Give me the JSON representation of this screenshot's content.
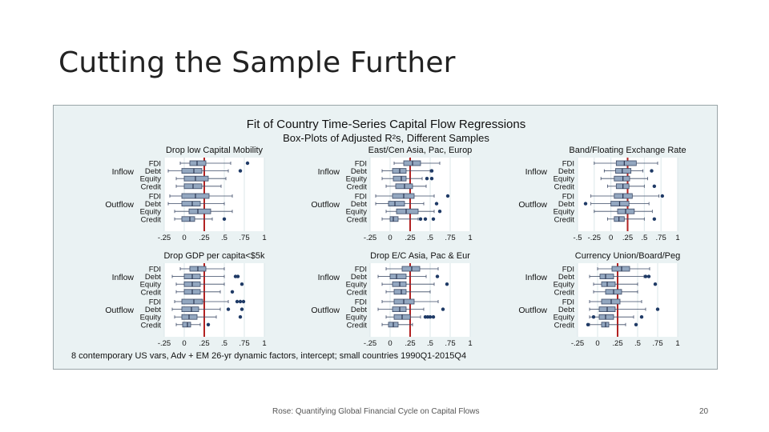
{
  "slide": {
    "title": "Cutting the Sample Further",
    "footer": "Rose: Quantifying Global Financial Cycle on Capital Flows",
    "page_number": "20"
  },
  "colors": {
    "panel_bg": "#eaf2f3",
    "plot_bg": "#ffffff",
    "box_fill": "#93a7c0",
    "box_stroke": "#3c4a66",
    "median": "#2a3550",
    "outlier": "#1f3a66",
    "ref_line": "#b22222",
    "grid": "#dbe7ea"
  },
  "chart_data": {
    "type": "boxplot",
    "title": "Fit of Country Time-Series Capital Flow Regressions",
    "subtitle": "Box-Plots of Adjusted R²s, Different Samples",
    "note": "8 contemporary US vars, Adv + EM 26-yr dynamic factors, intercept; small countries 1990Q1-2015Q4",
    "reference_line": 0.25,
    "groups": [
      "Inflow",
      "Outflow"
    ],
    "categories": [
      "FDI",
      "Debt",
      "Equity",
      "Credit"
    ],
    "panels": [
      {
        "title": "Drop low Capital Mobility",
        "xlim": [
          -0.25,
          1
        ],
        "tick_labels": [
          "-.25",
          "0",
          ".25",
          ".5",
          ".75",
          "1"
        ],
        "tick_values": [
          -0.25,
          0,
          0.25,
          0.5,
          0.75,
          1
        ],
        "series": [
          {
            "group": "Inflow",
            "name": "FDI",
            "whisker_low": -0.05,
            "q1": 0.07,
            "median": 0.16,
            "q3": 0.27,
            "whisker_high": 0.58,
            "outliers": [
              0.79
            ]
          },
          {
            "group": "Inflow",
            "name": "Debt",
            "whisker_low": -0.2,
            "q1": -0.03,
            "median": 0.12,
            "q3": 0.22,
            "whisker_high": 0.55,
            "outliers": [
              0.7
            ]
          },
          {
            "group": "Inflow",
            "name": "Equity",
            "whisker_low": -0.1,
            "q1": 0.0,
            "median": 0.14,
            "q3": 0.3,
            "whisker_high": 0.52,
            "outliers": []
          },
          {
            "group": "Inflow",
            "name": "Credit",
            "whisker_low": -0.1,
            "q1": 0.0,
            "median": 0.11,
            "q3": 0.22,
            "whisker_high": 0.46,
            "outliers": []
          },
          {
            "group": "Outflow",
            "name": "FDI",
            "whisker_low": -0.18,
            "q1": -0.03,
            "median": 0.14,
            "q3": 0.31,
            "whisker_high": 0.6,
            "outliers": []
          },
          {
            "group": "Outflow",
            "name": "Debt",
            "whisker_low": -0.2,
            "q1": -0.03,
            "median": 0.1,
            "q3": 0.2,
            "whisker_high": 0.5,
            "outliers": []
          },
          {
            "group": "Outflow",
            "name": "Equity",
            "whisker_low": -0.12,
            "q1": 0.06,
            "median": 0.17,
            "q3": 0.33,
            "whisker_high": 0.6,
            "outliers": []
          },
          {
            "group": "Outflow",
            "name": "Credit",
            "whisker_low": -0.12,
            "q1": -0.03,
            "median": 0.07,
            "q3": 0.13,
            "whisker_high": 0.35,
            "outliers": [
              0.5
            ]
          }
        ]
      },
      {
        "title": "East/Cen Asia, Pac, Europ",
        "xlim": [
          -0.25,
          1
        ],
        "tick_labels": [
          "-.25",
          "0",
          ".25",
          ".5",
          ".75",
          "1"
        ],
        "tick_values": [
          -0.25,
          0,
          0.25,
          0.5,
          0.75,
          1
        ],
        "series": [
          {
            "group": "Inflow",
            "name": "FDI",
            "whisker_low": 0.05,
            "q1": 0.17,
            "median": 0.28,
            "q3": 0.38,
            "whisker_high": 0.62,
            "outliers": []
          },
          {
            "group": "Inflow",
            "name": "Debt",
            "whisker_low": -0.1,
            "q1": 0.03,
            "median": 0.12,
            "q3": 0.2,
            "whisker_high": 0.5,
            "outliers": [
              0.52
            ]
          },
          {
            "group": "Inflow",
            "name": "Equity",
            "whisker_low": -0.1,
            "q1": 0.04,
            "median": 0.14,
            "q3": 0.2,
            "whisker_high": 0.4,
            "outliers": [
              0.46,
              0.52
            ]
          },
          {
            "group": "Inflow",
            "name": "Credit",
            "whisker_low": -0.05,
            "q1": 0.07,
            "median": 0.18,
            "q3": 0.28,
            "whisker_high": 0.45,
            "outliers": []
          },
          {
            "group": "Outflow",
            "name": "FDI",
            "whisker_low": -0.18,
            "q1": 0.03,
            "median": 0.17,
            "q3": 0.3,
            "whisker_high": 0.55,
            "outliers": [
              0.72
            ]
          },
          {
            "group": "Outflow",
            "name": "Debt",
            "whisker_low": -0.18,
            "q1": -0.02,
            "median": 0.06,
            "q3": 0.18,
            "whisker_high": 0.42,
            "outliers": [
              0.58
            ]
          },
          {
            "group": "Outflow",
            "name": "Equity",
            "whisker_low": -0.05,
            "q1": 0.08,
            "median": 0.2,
            "q3": 0.35,
            "whisker_high": 0.55,
            "outliers": [
              0.62
            ]
          },
          {
            "group": "Outflow",
            "name": "Credit",
            "whisker_low": -0.1,
            "q1": 0.0,
            "median": 0.04,
            "q3": 0.1,
            "whisker_high": 0.35,
            "outliers": [
              0.38,
              0.44,
              0.54
            ]
          }
        ]
      },
      {
        "title": "Band/Floating Exchange Rate",
        "xlim": [
          -0.5,
          1
        ],
        "tick_labels": [
          "-.5",
          "-.25",
          "0",
          ".25",
          ".5",
          ".75",
          "1"
        ],
        "tick_values": [
          -0.5,
          -0.25,
          0,
          0.25,
          0.5,
          0.75,
          1
        ],
        "series": [
          {
            "group": "Inflow",
            "name": "FDI",
            "whisker_low": -0.25,
            "q1": 0.08,
            "median": 0.2,
            "q3": 0.38,
            "whisker_high": 0.7,
            "outliers": []
          },
          {
            "group": "Inflow",
            "name": "Debt",
            "whisker_low": -0.1,
            "q1": 0.07,
            "median": 0.17,
            "q3": 0.3,
            "whisker_high": 0.48,
            "outliers": [
              0.61
            ]
          },
          {
            "group": "Inflow",
            "name": "Equity",
            "whisker_low": -0.15,
            "q1": 0.05,
            "median": 0.18,
            "q3": 0.28,
            "whisker_high": 0.55,
            "outliers": []
          },
          {
            "group": "Inflow",
            "name": "Credit",
            "whisker_low": -0.05,
            "q1": 0.08,
            "median": 0.18,
            "q3": 0.27,
            "whisker_high": 0.5,
            "outliers": [
              0.65
            ]
          },
          {
            "group": "Outflow",
            "name": "FDI",
            "whisker_low": -0.3,
            "q1": 0.05,
            "median": 0.18,
            "q3": 0.32,
            "whisker_high": 0.72,
            "outliers": [
              0.77
            ]
          },
          {
            "group": "Outflow",
            "name": "Debt",
            "whisker_low": -0.3,
            "q1": 0.0,
            "median": 0.13,
            "q3": 0.27,
            "whisker_high": 0.57,
            "outliers": [
              -0.38
            ]
          },
          {
            "group": "Outflow",
            "name": "Equity",
            "whisker_low": -0.25,
            "q1": 0.1,
            "median": 0.22,
            "q3": 0.35,
            "whisker_high": 0.62,
            "outliers": []
          },
          {
            "group": "Outflow",
            "name": "Credit",
            "whisker_low": -0.05,
            "q1": 0.05,
            "median": 0.12,
            "q3": 0.2,
            "whisker_high": 0.5,
            "outliers": [
              0.65
            ]
          }
        ]
      },
      {
        "title": "Drop GDP per capita<$5k",
        "xlim": [
          -0.25,
          1
        ],
        "tick_labels": [
          "-.25",
          "0",
          ".25",
          ".5",
          ".75",
          "1"
        ],
        "tick_values": [
          -0.25,
          0,
          0.25,
          0.5,
          0.75,
          1
        ],
        "series": [
          {
            "group": "Inflow",
            "name": "FDI",
            "whisker_low": -0.05,
            "q1": 0.07,
            "median": 0.17,
            "q3": 0.27,
            "whisker_high": 0.5,
            "outliers": []
          },
          {
            "group": "Inflow",
            "name": "Debt",
            "whisker_low": -0.15,
            "q1": 0.0,
            "median": 0.1,
            "q3": 0.2,
            "whisker_high": 0.5,
            "outliers": [
              0.64,
              0.67
            ]
          },
          {
            "group": "Inflow",
            "name": "Equity",
            "whisker_low": -0.1,
            "q1": 0.0,
            "median": 0.1,
            "q3": 0.2,
            "whisker_high": 0.5,
            "outliers": [
              0.72
            ]
          },
          {
            "group": "Inflow",
            "name": "Credit",
            "whisker_low": -0.1,
            "q1": 0.0,
            "median": 0.1,
            "q3": 0.2,
            "whisker_high": 0.45,
            "outliers": [
              0.6
            ]
          },
          {
            "group": "Outflow",
            "name": "FDI",
            "whisker_low": -0.12,
            "q1": -0.03,
            "median": 0.12,
            "q3": 0.23,
            "whisker_high": 0.55,
            "outliers": [
              0.66,
              0.7,
              0.74
            ]
          },
          {
            "group": "Outflow",
            "name": "Debt",
            "whisker_low": -0.15,
            "q1": -0.03,
            "median": 0.09,
            "q3": 0.18,
            "whisker_high": 0.45,
            "outliers": [
              0.55,
              0.72
            ]
          },
          {
            "group": "Outflow",
            "name": "Equity",
            "whisker_low": -0.12,
            "q1": -0.03,
            "median": 0.06,
            "q3": 0.16,
            "whisker_high": 0.4,
            "outliers": [
              0.7
            ]
          },
          {
            "group": "Outflow",
            "name": "Credit",
            "whisker_low": -0.1,
            "q1": -0.02,
            "median": 0.04,
            "q3": 0.08,
            "whisker_high": 0.2,
            "outliers": [
              0.3
            ]
          }
        ]
      },
      {
        "title": "Drop E/C Asia, Pac & Eur",
        "xlim": [
          -0.25,
          1
        ],
        "tick_labels": [
          "-.25",
          "0",
          ".25",
          ".5",
          ".75",
          "1"
        ],
        "tick_values": [
          -0.25,
          0,
          0.25,
          0.5,
          0.75,
          1
        ],
        "series": [
          {
            "group": "Inflow",
            "name": "FDI",
            "whisker_low": -0.05,
            "q1": 0.15,
            "median": 0.27,
            "q3": 0.37,
            "whisker_high": 0.6,
            "outliers": []
          },
          {
            "group": "Inflow",
            "name": "Debt",
            "whisker_low": -0.15,
            "q1": 0.0,
            "median": 0.08,
            "q3": 0.2,
            "whisker_high": 0.45,
            "outliers": [
              0.59
            ]
          },
          {
            "group": "Inflow",
            "name": "Equity",
            "whisker_low": -0.1,
            "q1": 0.03,
            "median": 0.12,
            "q3": 0.2,
            "whisker_high": 0.55,
            "outliers": [
              0.71
            ]
          },
          {
            "group": "Inflow",
            "name": "Credit",
            "whisker_low": -0.05,
            "q1": 0.05,
            "median": 0.14,
            "q3": 0.2,
            "whisker_high": 0.5,
            "outliers": []
          },
          {
            "group": "Outflow",
            "name": "FDI",
            "whisker_low": -0.1,
            "q1": 0.05,
            "median": 0.17,
            "q3": 0.3,
            "whisker_high": 0.6,
            "outliers": []
          },
          {
            "group": "Outflow",
            "name": "Debt",
            "whisker_low": -0.15,
            "q1": 0.03,
            "median": 0.12,
            "q3": 0.2,
            "whisker_high": 0.42,
            "outliers": [
              0.66
            ]
          },
          {
            "group": "Outflow",
            "name": "Equity",
            "whisker_low": -0.05,
            "q1": 0.05,
            "median": 0.15,
            "q3": 0.25,
            "whisker_high": 0.38,
            "outliers": [
              0.44,
              0.47,
              0.5,
              0.54
            ]
          },
          {
            "group": "Outflow",
            "name": "Credit",
            "whisker_low": -0.1,
            "q1": -0.02,
            "median": 0.04,
            "q3": 0.1,
            "whisker_high": 0.28,
            "outliers": []
          }
        ]
      },
      {
        "title": "Currency Union/Board/Peg",
        "xlim": [
          -0.25,
          1
        ],
        "tick_labels": [
          "-.25",
          "0",
          ".25",
          ".5",
          ".75",
          "1"
        ],
        "tick_values": [
          -0.25,
          0,
          0.25,
          0.5,
          0.75,
          1
        ],
        "series": [
          {
            "group": "Inflow",
            "name": "FDI",
            "whisker_low": 0.0,
            "q1": 0.18,
            "median": 0.3,
            "q3": 0.4,
            "whisker_high": 0.65,
            "outliers": []
          },
          {
            "group": "Inflow",
            "name": "Debt",
            "whisker_low": -0.1,
            "q1": 0.03,
            "median": 0.1,
            "q3": 0.2,
            "whisker_high": 0.58,
            "outliers": [
              0.6,
              0.64
            ]
          },
          {
            "group": "Inflow",
            "name": "Equity",
            "whisker_low": -0.05,
            "q1": 0.05,
            "median": 0.12,
            "q3": 0.22,
            "whisker_high": 0.5,
            "outliers": [
              0.72
            ]
          },
          {
            "group": "Inflow",
            "name": "Credit",
            "whisker_low": -0.05,
            "q1": 0.1,
            "median": 0.2,
            "q3": 0.3,
            "whisker_high": 0.5,
            "outliers": []
          },
          {
            "group": "Outflow",
            "name": "FDI",
            "whisker_low": -0.1,
            "q1": 0.05,
            "median": 0.17,
            "q3": 0.28,
            "whisker_high": 0.55,
            "outliers": []
          },
          {
            "group": "Outflow",
            "name": "Debt",
            "whisker_low": -0.1,
            "q1": 0.02,
            "median": 0.12,
            "q3": 0.22,
            "whisker_high": 0.6,
            "outliers": [
              0.75
            ]
          },
          {
            "group": "Outflow",
            "name": "Equity",
            "whisker_low": -0.1,
            "q1": 0.02,
            "median": 0.1,
            "q3": 0.2,
            "whisker_high": 0.45,
            "outliers": [
              -0.05,
              0.55
            ]
          },
          {
            "group": "Outflow",
            "name": "Credit",
            "whisker_low": -0.1,
            "q1": 0.05,
            "median": 0.1,
            "q3": 0.14,
            "whisker_high": 0.35,
            "outliers": [
              -0.12,
              0.48
            ]
          }
        ]
      }
    ]
  }
}
